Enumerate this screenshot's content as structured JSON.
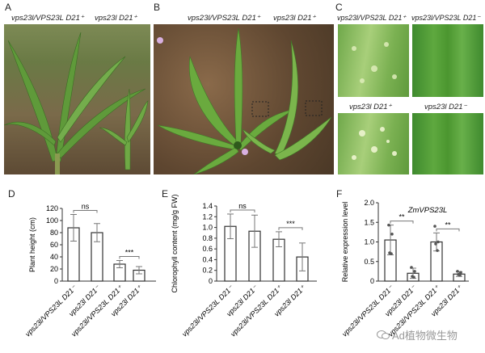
{
  "panels": {
    "A": {
      "letter": "A",
      "labels": [
        "vps23l/VPS23L D21⁺",
        "vps23l D21⁺"
      ]
    },
    "B": {
      "letter": "B",
      "labels": [
        "vps23l/VPS23L D21⁺",
        "vps23l D21⁺"
      ]
    },
    "C": {
      "letter": "C",
      "labels": [
        "vps23l/VPS23L D21⁺",
        "vps23l/VPS23L D21⁻",
        "vps23l D21⁺",
        "vps23l D21⁻"
      ]
    },
    "D": {
      "letter": "D"
    },
    "E": {
      "letter": "E"
    },
    "F": {
      "letter": "F"
    }
  },
  "watermark": "Ad植物微生物",
  "colors": {
    "bar_fill": "#ffffff",
    "bar_stroke": "#333333",
    "error_bar": "#777777",
    "point": "#555555"
  },
  "chart_data": [
    {
      "type": "bar",
      "panel": "D",
      "title": "",
      "ylabel": "Plant height (cm)",
      "xlabel": "",
      "ylim": [
        0,
        120
      ],
      "yticks": [
        0,
        20,
        40,
        60,
        80,
        100,
        120
      ],
      "categories": [
        "vps23l/VPS23L D21⁻",
        "vps23l D21⁻",
        "vps23l/VPS23L D21⁺",
        "vps23l D21⁺"
      ],
      "values": [
        88,
        80,
        28,
        18
      ],
      "errors": [
        22,
        15,
        6,
        6
      ],
      "significance": [
        {
          "pair": [
            0,
            1
          ],
          "label": "ns"
        },
        {
          "pair": [
            2,
            3
          ],
          "label": "***"
        }
      ]
    },
    {
      "type": "bar",
      "panel": "E",
      "title": "",
      "ylabel": "Chlorophyll content (mg/g FW)",
      "xlabel": "",
      "ylim": [
        0,
        1.4
      ],
      "yticks": [
        "0",
        "0.2",
        "0.4",
        "0.6",
        "0.8",
        "1.0",
        "1.2",
        "1.4"
      ],
      "categories": [
        "vps23l/VPS23L D21⁻",
        "vps23l D21⁻",
        "vps23l/VPS23L D21⁺",
        "vps23l D21⁺"
      ],
      "values": [
        1.02,
        0.93,
        0.78,
        0.45
      ],
      "errors": [
        0.23,
        0.3,
        0.14,
        0.26
      ],
      "significance": [
        {
          "pair": [
            0,
            1
          ],
          "label": "ns"
        },
        {
          "pair": [
            2,
            3
          ],
          "label": "***"
        }
      ]
    },
    {
      "type": "bar",
      "panel": "F",
      "title": "ZmVPS23L",
      "ylabel": "Relative expression level",
      "xlabel": "",
      "ylim": [
        0,
        2.0
      ],
      "yticks": [
        "0",
        "0.5",
        "1.0",
        "1.5",
        "2.0"
      ],
      "categories": [
        "vps23l/VPS23L D21⁻",
        "vps23l D21⁻",
        "vps23l/VPS23L D21⁺",
        "vps23l D21⁺"
      ],
      "values": [
        1.05,
        0.2,
        1.0,
        0.18
      ],
      "errors": [
        0.38,
        0.13,
        0.23,
        0.06
      ],
      "points": [
        [
          1.43,
          1.2,
          0.72,
          0.7
        ],
        [
          0.35,
          0.25,
          0.12,
          0.1
        ],
        [
          1.4,
          1.0,
          0.95,
          0.78
        ],
        [
          0.25,
          0.22,
          0.17,
          0.15
        ]
      ],
      "significance": [
        {
          "pair": [
            0,
            1
          ],
          "label": "**"
        },
        {
          "pair": [
            2,
            3
          ],
          "label": "**"
        }
      ]
    }
  ]
}
